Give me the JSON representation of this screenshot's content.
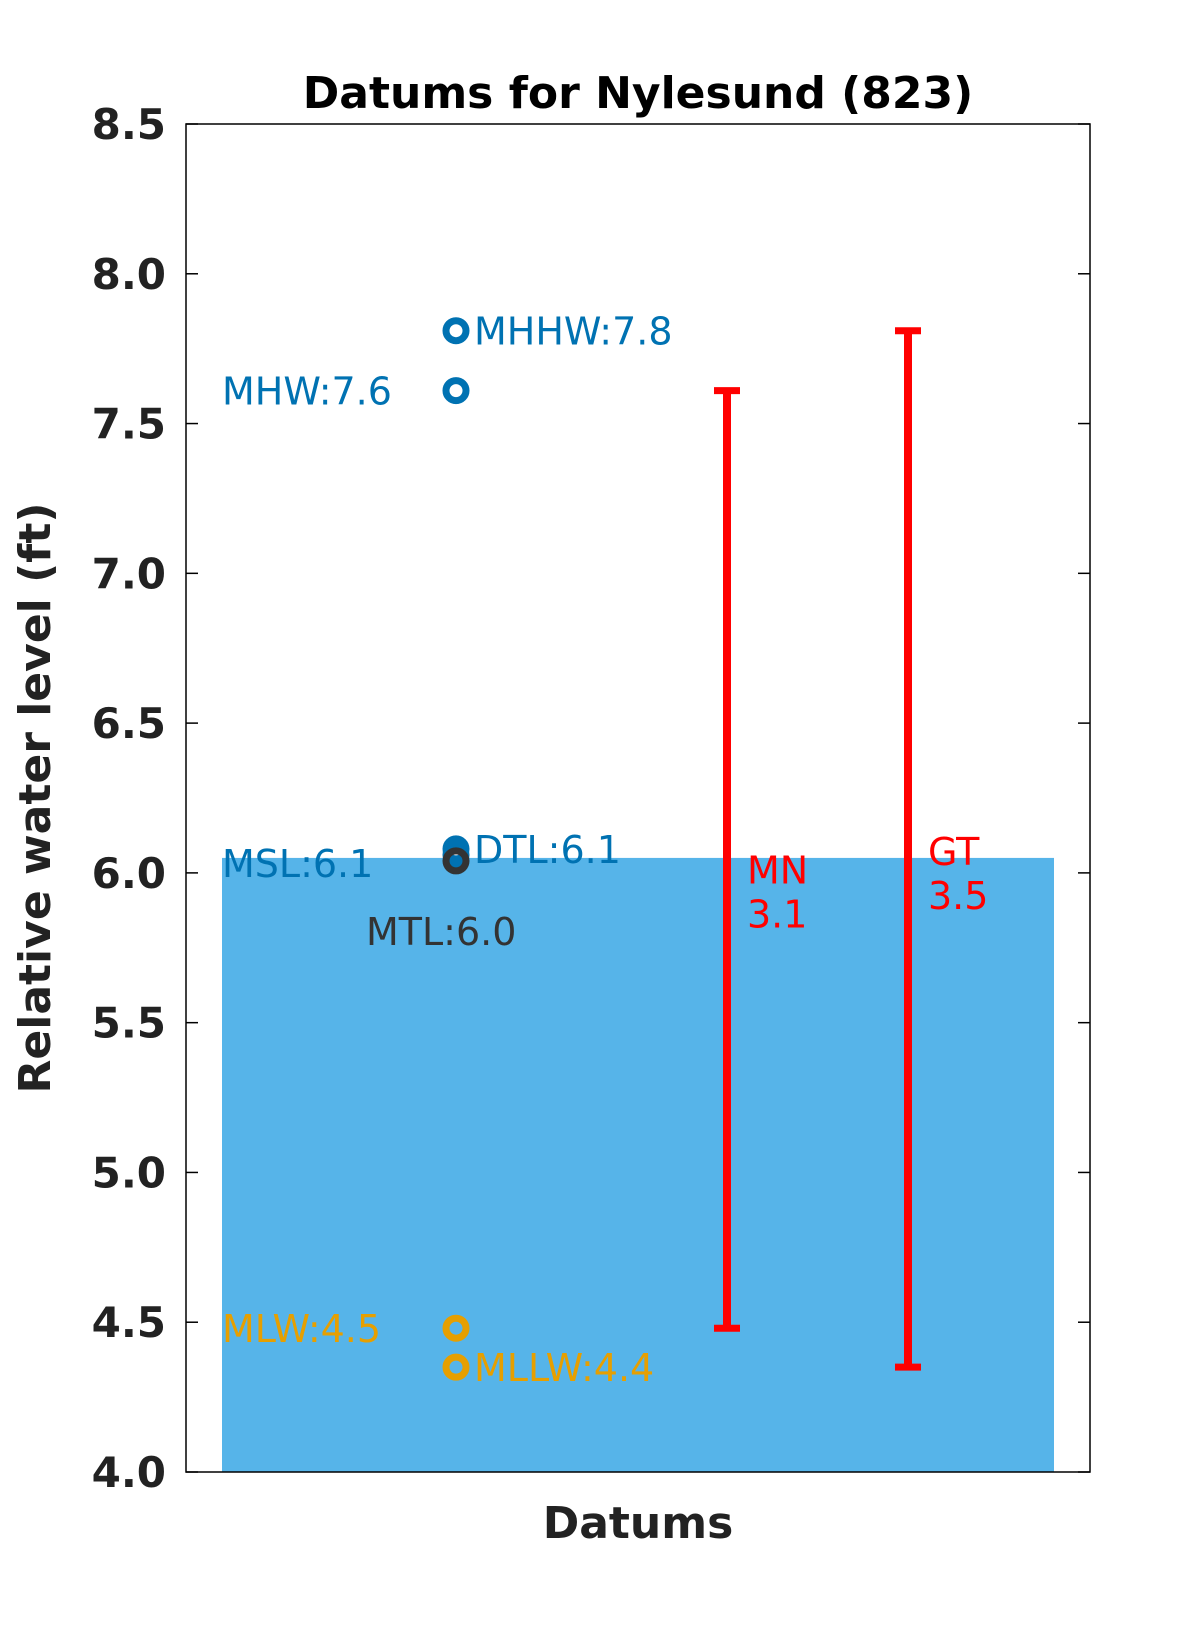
{
  "chart_data": {
    "type": "scatter",
    "title": "Datums for Nylesund (823)",
    "xlabel": "Datums",
    "ylabel": "Relative water level (ft)",
    "ylim": [
      4.0,
      8.5
    ],
    "yticks": [
      "4.0",
      "4.5",
      "5.0",
      "5.5",
      "6.0",
      "6.5",
      "7.0",
      "7.5",
      "8.0",
      "8.5"
    ],
    "grid": false,
    "msl_fill": {
      "value": 6.05,
      "color": "#56B4E9"
    },
    "datums": [
      {
        "name": "MHHW",
        "value": 7.81,
        "label": "MHHW:7.8",
        "color": "#0072B2",
        "label_side": "right"
      },
      {
        "name": "MHW",
        "value": 7.61,
        "label": "MHW:7.6",
        "color": "#0072B2",
        "label_side": "left"
      },
      {
        "name": "DTL",
        "value": 6.08,
        "label": "DTL:6.1",
        "color": "#0072B2",
        "label_side": "right"
      },
      {
        "name": "MSL",
        "value": 6.06,
        "label": "MSL:6.1",
        "color": "#0072B2",
        "label_side": "left"
      },
      {
        "name": "MTL",
        "value": 6.04,
        "label": "MTL:6.0",
        "color": "#333333",
        "label_side": "below"
      },
      {
        "name": "MLW",
        "value": 4.48,
        "label": "MLW:4.5",
        "color": "#E69F00",
        "label_side": "left"
      },
      {
        "name": "MLLW",
        "value": 4.35,
        "label": "MLLW:4.4",
        "color": "#E69F00",
        "label_side": "right"
      }
    ],
    "ranges": [
      {
        "name": "MN",
        "value_text": "3.1",
        "low": 4.48,
        "high": 7.61,
        "color": "#FF0000"
      },
      {
        "name": "GT",
        "value_text": "3.5",
        "low": 4.35,
        "high": 7.81,
        "color": "#FF0000"
      }
    ]
  }
}
